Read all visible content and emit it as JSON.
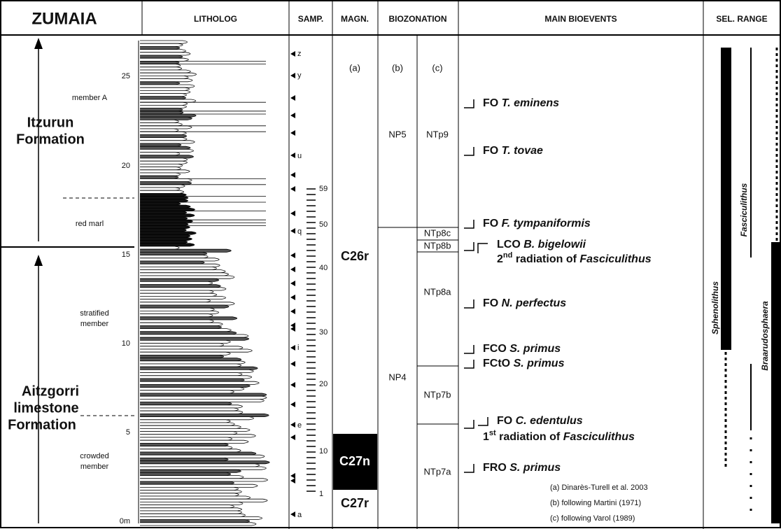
{
  "header": {
    "site": "ZUMAIA",
    "columns": [
      "LITHOLOG",
      "SAMP.",
      "MAGN.",
      "BIOZONATION",
      "MAIN BIOEVENTS",
      "SEL. RANGE"
    ]
  },
  "formations": [
    {
      "name": "Itzurun",
      "word": "Formation"
    },
    {
      "name": "Aitzgorri",
      "sub": "limestone",
      "word": "Formation"
    }
  ],
  "members": [
    "member A",
    "red marl",
    "stratified",
    "member",
    "crowded",
    "member"
  ],
  "depth_ticks": [
    "0m",
    "5",
    "10",
    "15",
    "20",
    "25"
  ],
  "samples": {
    "numbers": [
      "1",
      "10",
      "20",
      "30",
      "40",
      "50",
      "59"
    ],
    "letters": [
      "a",
      "e",
      "i",
      "q",
      "u",
      "y",
      "z"
    ]
  },
  "magnetostratigraphy": {
    "ref": "(a)",
    "zones": [
      "C26r",
      "C27n",
      "C27r"
    ]
  },
  "biozonation": {
    "refs": [
      "(b)",
      "(c)"
    ],
    "np_zones": [
      "NP5",
      "NP4"
    ],
    "ntp_zones": [
      "NTp9",
      "NTp8c",
      "NTp8b",
      "NTp8a",
      "NTp7b",
      "NTp7a"
    ]
  },
  "bioevents": [
    {
      "label": "FO",
      "taxon": "T. eminens"
    },
    {
      "label": "FO",
      "taxon": "T. tovae"
    },
    {
      "label": "FO",
      "taxon": "F. tympaniformis"
    },
    {
      "label": "LCO",
      "taxon": "B. bigelowii"
    },
    {
      "num": "2",
      "sup": "nd",
      "text": "radiation of",
      "taxon": "Fasciculithus"
    },
    {
      "label": "FO",
      "taxon": "N. perfectus"
    },
    {
      "label": "FCO",
      "taxon": "S. primus"
    },
    {
      "label": "FCtO",
      "taxon": "S. primus"
    },
    {
      "label": "FO",
      "taxon": "C. edentulus"
    },
    {
      "num": "1",
      "sup": "st",
      "text": "radiation of",
      "taxon": "Fasciculithus"
    },
    {
      "label": "FRO",
      "taxon": "S. primus"
    }
  ],
  "references": [
    "(a) Dinarès-Turell et al. 2003",
    "(b) following Martini (1971)",
    "(c) following Varol (1989)"
  ],
  "ranges": [
    "Sphenolithus",
    "Fasciculithus",
    "Braarudosphaera"
  ]
}
